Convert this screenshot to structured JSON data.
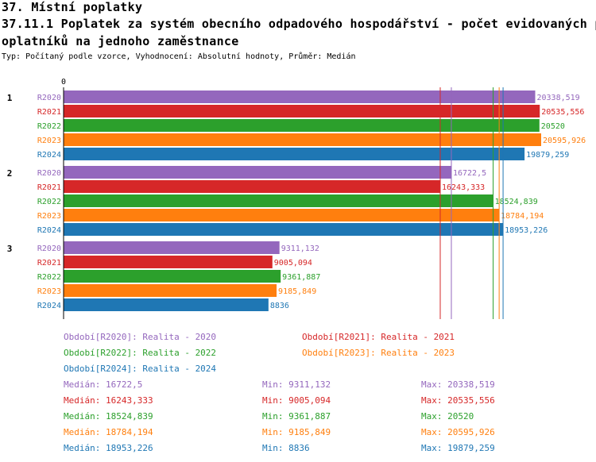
{
  "header": {
    "title_line1": "37. Místní poplatky",
    "title_line2": "37.11.1 Poplatek za systém obecního odpadového hospodářství - počet evidovaných p",
    "title_line3": "oplatníků na jednoho zaměstnance",
    "subtitle": "Typ: Počítaný podle vzorce, Vyhodnocení: Absolutní hodnoty, Průměr: Medián"
  },
  "chart_data": {
    "type": "bar",
    "orientation": "horizontal",
    "axis_zero_label": "0",
    "xlim": [
      0,
      21500
    ],
    "groups": [
      "1",
      "2",
      "3"
    ],
    "series": [
      {
        "name": "R2020",
        "color": "#9467bd",
        "values": [
          20338.519,
          16722.5,
          9311.132
        ],
        "labels": [
          "20338,519",
          "16722,5",
          "9311,132"
        ]
      },
      {
        "name": "R2021",
        "color": "#d62728",
        "values": [
          20535.556,
          16243.333,
          9005.094
        ],
        "labels": [
          "20535,556",
          "16243,333",
          "9005,094"
        ]
      },
      {
        "name": "R2022",
        "color": "#2ca02c",
        "values": [
          20520,
          18524.839,
          9361.887
        ],
        "labels": [
          "20520",
          "18524,839",
          "9361,887"
        ]
      },
      {
        "name": "R2023",
        "color": "#ff7f0e",
        "values": [
          20595.926,
          18784.194,
          9185.849
        ],
        "labels": [
          "20595,926",
          "18784,194",
          "9185,849"
        ]
      },
      {
        "name": "R2024",
        "color": "#1f77b4",
        "values": [
          19879.259,
          18953.226,
          8836
        ],
        "labels": [
          "19879,259",
          "18953,226",
          "8836"
        ]
      }
    ],
    "medians": [
      16722.5,
      16243.333,
      18524.839,
      18784.194,
      18953.226
    ]
  },
  "legend": [
    {
      "label": "Období[R2020]: Realita - 2020",
      "color": "#9467bd"
    },
    {
      "label": "Období[R2021]: Realita - 2021",
      "color": "#d62728"
    },
    {
      "label": "Období[R2022]: Realita - 2022",
      "color": "#2ca02c"
    },
    {
      "label": "Období[R2023]: Realita - 2023",
      "color": "#ff7f0e"
    },
    {
      "label": "Období[R2024]: Realita - 2024",
      "color": "#1f77b4"
    }
  ],
  "stats": [
    {
      "median": "Medián: 16722,5",
      "min": "Min: 9311,132",
      "max": "Max: 20338,519",
      "color": "#9467bd"
    },
    {
      "median": "Medián: 16243,333",
      "min": "Min: 9005,094",
      "max": "Max: 20535,556",
      "color": "#d62728"
    },
    {
      "median": "Medián: 18524,839",
      "min": "Min: 9361,887",
      "max": "Max: 20520",
      "color": "#2ca02c"
    },
    {
      "median": "Medián: 18784,194",
      "min": "Min: 9185,849",
      "max": "Max: 20595,926",
      "color": "#ff7f0e"
    },
    {
      "median": "Medián: 18953,226",
      "min": "Min: 8836",
      "max": "Max: 19879,259",
      "color": "#1f77b4"
    }
  ]
}
